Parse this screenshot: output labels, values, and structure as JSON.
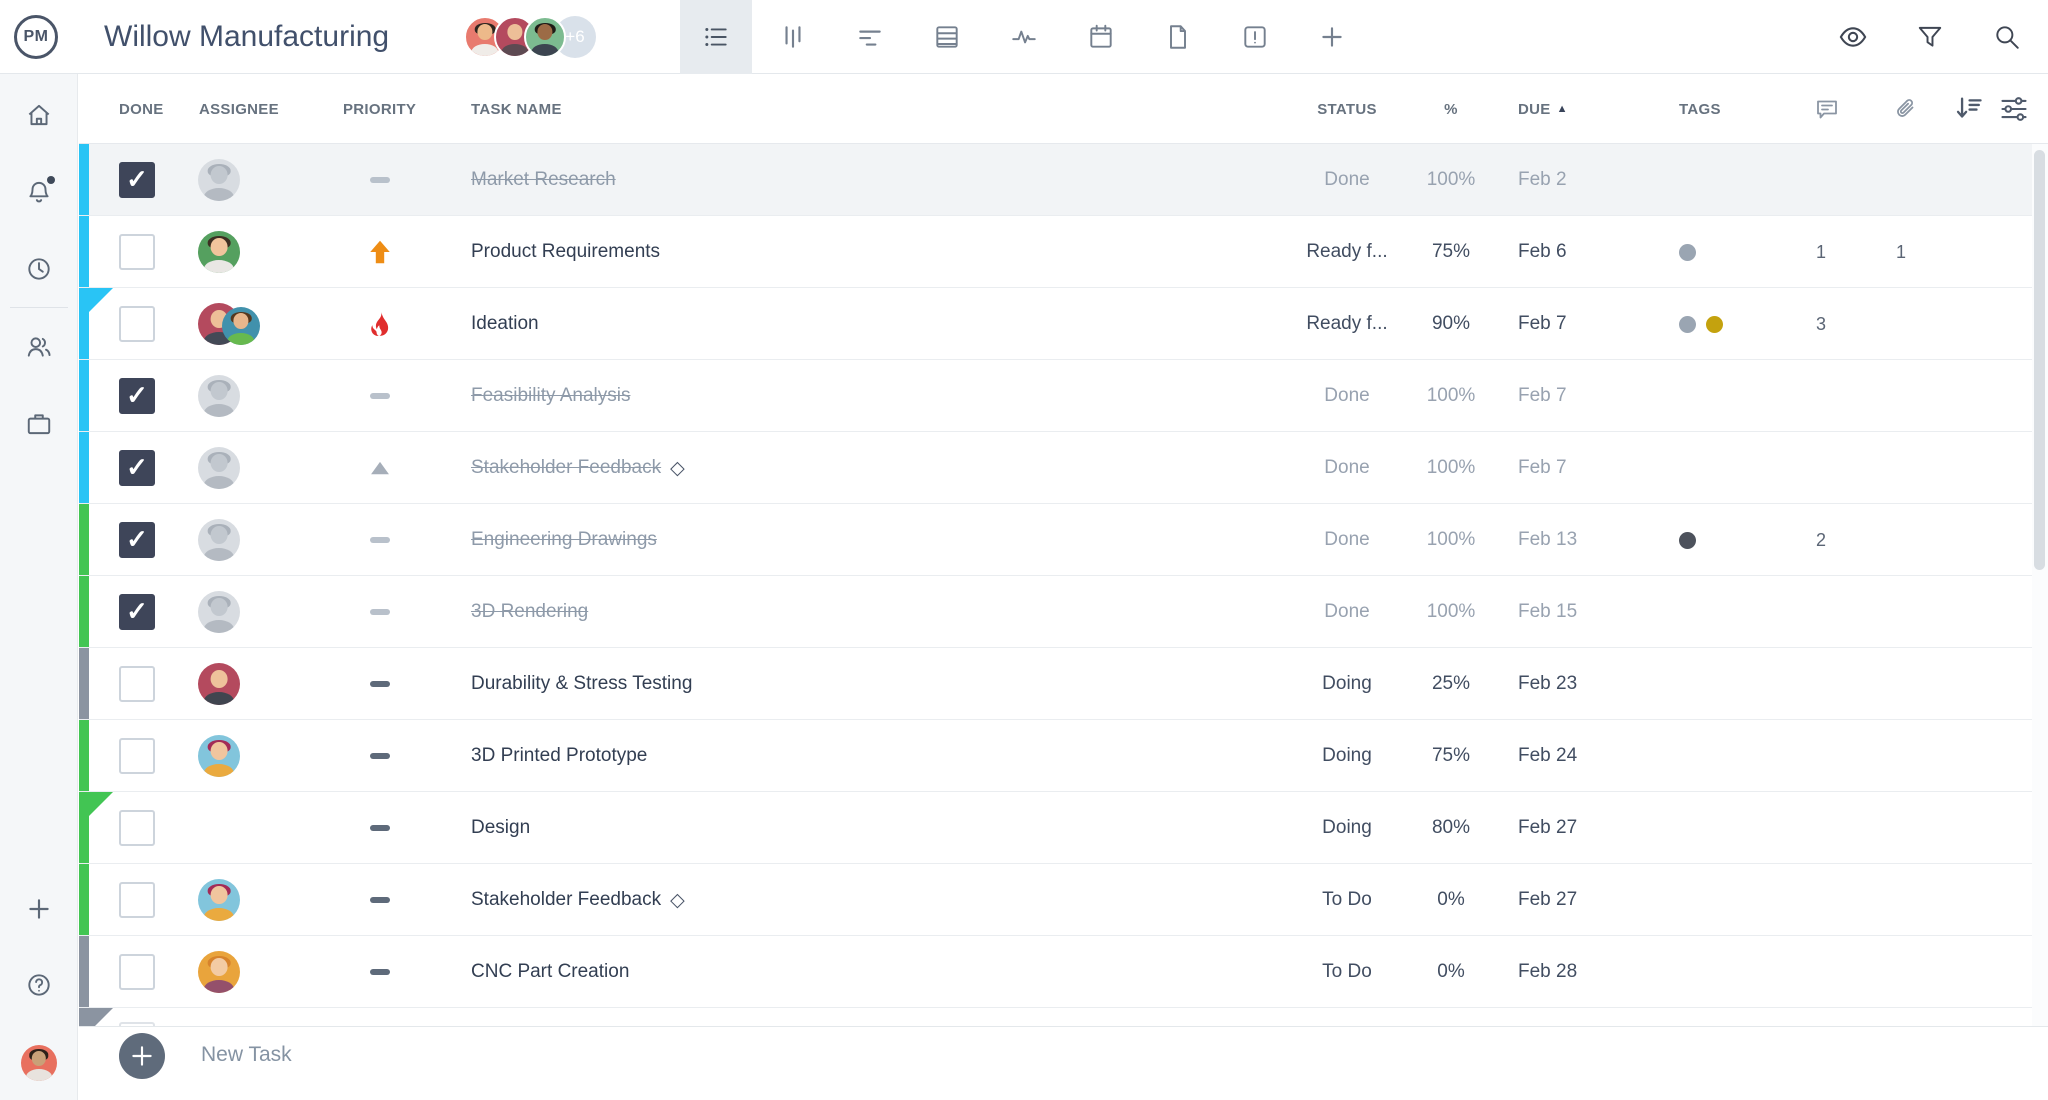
{
  "app": {
    "logo": "PM",
    "title": "Willow Manufacturing"
  },
  "team": {
    "overflow": "+6",
    "members": [
      {
        "bg": "#e87a6e",
        "skin": "#edb98a",
        "hair": "#2f2620",
        "shirt": "#f0ece8"
      },
      {
        "bg": "#b44a5e",
        "skin": "#edbf98",
        "hair": null,
        "shirt": "#5d4a52"
      },
      {
        "bg": "#7cbb90",
        "skin": "#9c6b46",
        "hair": "#1f1a16",
        "shirt": "#3c4450"
      }
    ]
  },
  "topbar": {
    "view_tabs": [
      {
        "icon": "list",
        "selected": true
      },
      {
        "icon": "board",
        "selected": false
      },
      {
        "icon": "gantt",
        "selected": false
      },
      {
        "icon": "sheet",
        "selected": false
      },
      {
        "icon": "activity",
        "selected": false
      },
      {
        "icon": "calendar",
        "selected": false
      },
      {
        "icon": "doc",
        "selected": false
      },
      {
        "icon": "alert",
        "selected": false
      },
      {
        "icon": "plus",
        "selected": false
      }
    ],
    "actions": [
      {
        "icon": "eye"
      },
      {
        "icon": "filter"
      },
      {
        "icon": "search"
      }
    ]
  },
  "sidebar": {
    "top_items": [
      {
        "icon": "home"
      },
      {
        "icon": "bell",
        "badge": true
      },
      {
        "icon": "clock"
      },
      {
        "icon": "users"
      },
      {
        "icon": "briefcase"
      }
    ],
    "bottom_items": [
      {
        "icon": "plus"
      },
      {
        "icon": "help"
      }
    ],
    "user_avatar": {
      "bg": "#e8705f",
      "skin": "#c9a078",
      "hair": "#2e2119",
      "shirt": "#e8e3de"
    }
  },
  "table": {
    "headers": {
      "done": "DONE",
      "assignee": "ASSIGNEE",
      "priority": "PRIORITY",
      "task": "TASK NAME",
      "status": "STATUS",
      "pct": "%",
      "due": "DUE",
      "tags": "TAGS"
    },
    "sort_glyph": "▲",
    "check_glyph": "✓",
    "milestone_glyph": "◇"
  },
  "colors": {
    "cyan": "#29c4f5",
    "green": "#42c553",
    "gray": "#8b94a1",
    "dash_muted": "#b9c1cb",
    "dash_normal": "#5e6a7a",
    "arrow": "#ee8d15",
    "flame": "#e02d2d",
    "triangle": "#a6aeb9",
    "tag_gray": "#9aa5b2",
    "tag_gold": "#c4a20e",
    "tag_dark": "#4d525c",
    "avatar_gray": {
      "bg": "#d8dce1",
      "skin": "#c2c8cf",
      "hair": "#aab1ba",
      "shirt": "#b4bac2"
    }
  },
  "rows": [
    {
      "task": "Market Research",
      "completed": true,
      "shaded": true,
      "bar": "cyan",
      "corner": null,
      "avatars": [
        "gray"
      ],
      "priority": {
        "icon": "dash",
        "muted": true
      },
      "status": "Done",
      "pct": "100%",
      "due": "Feb 2",
      "tags": [],
      "comments": null,
      "attachments": null,
      "milestone": false
    },
    {
      "task": "Product Requirements",
      "completed": false,
      "shaded": false,
      "bar": "cyan",
      "corner": null,
      "avatars": [
        {
          "bg": "#55a05f",
          "skin": "#f1c49c",
          "hair": "#3d2f22",
          "shirt": "#e9e7e4"
        }
      ],
      "priority": {
        "icon": "arrow",
        "muted": false
      },
      "status": "Ready f...",
      "pct": "75%",
      "due": "Feb 6",
      "tags": [
        "tag_gray"
      ],
      "comments": "1",
      "attachments": "1",
      "milestone": false
    },
    {
      "task": "Ideation",
      "completed": false,
      "shaded": false,
      "bar": "cyan",
      "corner": "cyan",
      "avatars": [
        {
          "bg": "#b44a5e",
          "skin": "#edbf98",
          "hair": null,
          "shirt": "#434956"
        },
        {
          "bg": "#4191ac",
          "skin": "#e7b68c",
          "hair": "#54381f",
          "shirt": "#67b94e"
        }
      ],
      "priority": {
        "icon": "flame",
        "muted": false
      },
      "status": "Ready f...",
      "pct": "90%",
      "due": "Feb 7",
      "tags": [
        "tag_gray",
        "tag_gold"
      ],
      "comments": "3",
      "attachments": null,
      "milestone": false
    },
    {
      "task": "Feasibility Analysis",
      "completed": true,
      "shaded": false,
      "bar": "cyan",
      "corner": null,
      "avatars": [
        "gray"
      ],
      "priority": {
        "icon": "dash",
        "muted": true
      },
      "status": "Done",
      "pct": "100%",
      "due": "Feb 7",
      "tags": [],
      "comments": null,
      "attachments": null,
      "milestone": false
    },
    {
      "task": "Stakeholder Feedback",
      "completed": true,
      "shaded": false,
      "bar": "cyan",
      "corner": null,
      "avatars": [
        "gray"
      ],
      "priority": {
        "icon": "triangle",
        "muted": true
      },
      "status": "Done",
      "pct": "100%",
      "due": "Feb 7",
      "tags": [],
      "comments": null,
      "attachments": null,
      "milestone": true
    },
    {
      "task": "Engineering Drawings",
      "completed": true,
      "shaded": false,
      "bar": "green",
      "corner": null,
      "avatars": [
        "gray"
      ],
      "priority": {
        "icon": "dash",
        "muted": true
      },
      "status": "Done",
      "pct": "100%",
      "due": "Feb 13",
      "tags": [
        "tag_dark"
      ],
      "comments": "2",
      "attachments": null,
      "milestone": false
    },
    {
      "task": "3D Rendering",
      "completed": true,
      "shaded": false,
      "bar": "green",
      "corner": null,
      "avatars": [
        "gray"
      ],
      "priority": {
        "icon": "dash",
        "muted": true
      },
      "status": "Done",
      "pct": "100%",
      "due": "Feb 15",
      "tags": [],
      "comments": null,
      "attachments": null,
      "milestone": false
    },
    {
      "task": "Durability & Stress Testing",
      "completed": false,
      "shaded": false,
      "bar": "gray",
      "corner": null,
      "avatars": [
        {
          "bg": "#b44a5e",
          "skin": "#eec29b",
          "hair": null,
          "shirt": "#40454f"
        }
      ],
      "priority": {
        "icon": "dash",
        "muted": false
      },
      "status": "Doing",
      "pct": "25%",
      "due": "Feb 23",
      "tags": [],
      "comments": null,
      "attachments": null,
      "milestone": false
    },
    {
      "task": "3D Printed Prototype",
      "completed": false,
      "shaded": false,
      "bar": "green",
      "corner": null,
      "avatars": [
        {
          "bg": "#82c5dc",
          "skin": "#f0c59e",
          "hair": "#a32b57",
          "shirt": "#eaaa3f"
        }
      ],
      "priority": {
        "icon": "dash",
        "muted": false
      },
      "status": "Doing",
      "pct": "75%",
      "due": "Feb 24",
      "tags": [],
      "comments": null,
      "attachments": null,
      "milestone": false
    },
    {
      "task": "Design",
      "completed": false,
      "shaded": false,
      "bar": "green",
      "corner": "green",
      "avatars": [],
      "priority": {
        "icon": "dash",
        "muted": false
      },
      "status": "Doing",
      "pct": "80%",
      "due": "Feb 27",
      "tags": [],
      "comments": null,
      "attachments": null,
      "milestone": false
    },
    {
      "task": "Stakeholder Feedback",
      "completed": false,
      "shaded": false,
      "bar": "green",
      "corner": null,
      "avatars": [
        {
          "bg": "#82c5dc",
          "skin": "#f0c59e",
          "hair": "#a32b57",
          "shirt": "#eaaa3f"
        }
      ],
      "priority": {
        "icon": "dash",
        "muted": false
      },
      "status": "To Do",
      "pct": "0%",
      "due": "Feb 27",
      "tags": [],
      "comments": null,
      "attachments": null,
      "milestone": true
    },
    {
      "task": "CNC Part Creation",
      "completed": false,
      "shaded": false,
      "bar": "gray",
      "corner": null,
      "avatars": [
        {
          "bg": "#e9a43c",
          "skin": "#f3cba3",
          "hair": "#d7832c",
          "shirt": "#94506b"
        }
      ],
      "priority": {
        "icon": "dash",
        "muted": false
      },
      "status": "To Do",
      "pct": "0%",
      "due": "Feb 28",
      "tags": [],
      "comments": null,
      "attachments": null,
      "milestone": false
    }
  ],
  "partial_row": {
    "bar": "gray",
    "corner": "gray"
  },
  "footer": {
    "new_task_label": "New Task"
  }
}
